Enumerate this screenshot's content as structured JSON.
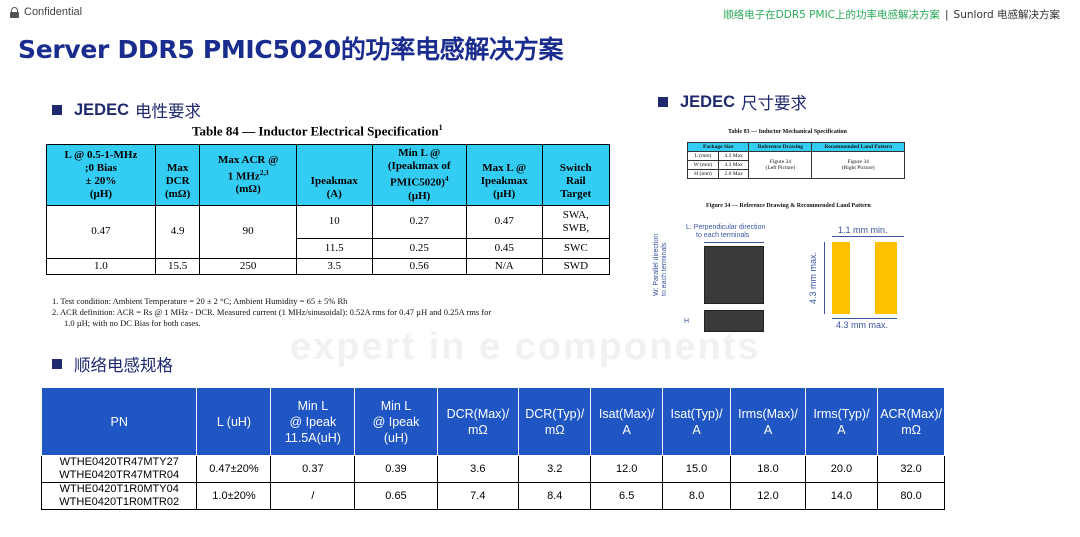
{
  "watermark": "expert in e components",
  "topbar": {
    "confidential": "Confidential",
    "breadcrumb_left": "顺络电子在DDR5 PMIC上的功率电感解决方案",
    "breadcrumb_sep": "|",
    "breadcrumb_right": "Sunlord 电感解决方案"
  },
  "title": "Server DDR5 PMIC5020的功率电感解决方案",
  "sections": {
    "electrical": {
      "bold": "JEDEC",
      "text": "电性要求"
    },
    "mechanical": {
      "bold": "JEDEC",
      "text": "尺寸要求"
    },
    "spec": {
      "text": "顺络电感规格"
    }
  },
  "table84": {
    "caption": "Table 84 — Inductor Electrical Specification",
    "caption_sup": "1",
    "headers": {
      "l": [
        "L @ 0.5-1-MHz",
        ";0 Bias",
        "± 20%",
        "(µH)"
      ],
      "dcr": [
        "Max",
        "DCR",
        "(mΩ)"
      ],
      "acr": [
        "Max ACR @",
        "1 MHz",
        "(mΩ)"
      ],
      "acr_sup": "2,3",
      "ipeak": [
        "Ipeakmax",
        "(A)"
      ],
      "minl": [
        "Min L @",
        "(Ipeakmax of",
        "PMIC5020)",
        "(µH)"
      ],
      "minl_sup": "4",
      "maxl": [
        "Max L @",
        "Ipeakmax",
        "(µH)"
      ],
      "switch": [
        "Switch",
        "Rail",
        "Target"
      ]
    },
    "rows": [
      {
        "l": "0.47",
        "dcr": "4.9",
        "acr": "90",
        "ipeak": "10",
        "minl": "0.27",
        "maxl": "0.47",
        "sw": "SWA,",
        "sw2": "SWB,"
      },
      {
        "ipeak": "11.5",
        "minl": "0.25",
        "maxl": "0.45",
        "sw": "SWC"
      },
      {
        "l": "1.0",
        "dcr": "15.5",
        "acr": "250",
        "ipeak": "3.5",
        "minl": "0.56",
        "maxl": "N/A",
        "sw": "SWD"
      }
    ],
    "notes": [
      "1.  Test condition: Ambient Temperature = 20 ± 2 °C; Ambient Humidity = 65 ± 5% Rh",
      "2.  ACR definition: ACR = Rs @ 1 MHz - DCR. Measured current (1 MHz/sinusoidal): 0.52A rms for 0.47 µH and 0.25A rms for",
      "1.0 µH; with no DC Bias for both cases."
    ]
  },
  "table83": {
    "caption": "Table 83 — Inductor Mechanical Specification",
    "headers": [
      "Package Size",
      "Reference Drawing",
      "Recommended Land Pattern"
    ],
    "rows": [
      [
        "L (mm)",
        "4.3 Max"
      ],
      [
        "W (mm)",
        "4.3 Max"
      ],
      [
        "H (mm)",
        "2.0 Max"
      ]
    ],
    "ref": [
      "Figure 34",
      "(Left Picture)"
    ],
    "land": [
      "Figure 34",
      "(Right Picture)"
    ]
  },
  "figure34": {
    "caption": "Figure 34 — Reference Drawing & Recommended Land Pattern",
    "l_label": [
      "L: Perpendicular direction",
      "to each terminals"
    ],
    "w_label": [
      "W: Parallel direction",
      "to each terminals"
    ],
    "h_label": "H",
    "min_label": "1.1 mm min.",
    "vmax_label": "4.3 mm max.",
    "hmax_label": "4.3 mm max."
  },
  "spec_table": {
    "headers": [
      [
        "PN"
      ],
      [
        "L (uH)"
      ],
      [
        "Min L",
        "@ Ipeak",
        "11.5A(uH)"
      ],
      [
        "Min L",
        "@ Ipeak",
        "(uH)"
      ],
      [
        "DCR(Max)/",
        "mΩ"
      ],
      [
        "DCR(Typ)/",
        "mΩ"
      ],
      [
        "Isat(Max)/",
        "A"
      ],
      [
        "Isat(Typ)/",
        "A"
      ],
      [
        "Irms(Max)/",
        "A"
      ],
      [
        "Irms(Typ)/",
        "A"
      ],
      [
        "ACR(Max)/",
        "mΩ"
      ]
    ],
    "rows": [
      {
        "pn1": "WTHE0420TR47MTY27",
        "pn2": "WTHE0420TR47MTR04",
        "l": "0.47±20%",
        "minl115": "0.37",
        "minl": "0.39",
        "dcr_max": "3.6",
        "dcr_typ": "3.2",
        "isat_max": "12.0",
        "isat_typ": "15.0",
        "irms_max": "18.0",
        "irms_typ": "20.0",
        "acr_max": "32.0"
      },
      {
        "pn1": "WTHE0420T1R0MTY04",
        "pn2": "WTHE0420T1R0MTR02",
        "l": "1.0±20%",
        "minl115": "/",
        "minl": "0.65",
        "dcr_max": "7.4",
        "dcr_typ": "8.4",
        "isat_max": "6.5",
        "isat_typ": "8.0",
        "irms_max": "12.0",
        "irms_typ": "14.0",
        "acr_max": "80.0"
      }
    ]
  }
}
